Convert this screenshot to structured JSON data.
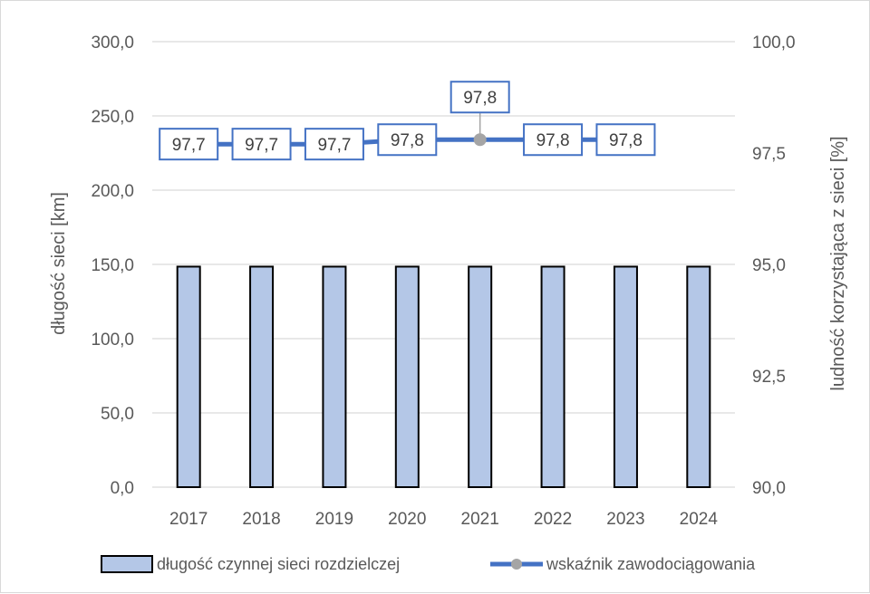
{
  "chart_data": {
    "type": "bar",
    "categories": [
      "2017",
      "2018",
      "2019",
      "2020",
      "2021",
      "2022",
      "2023",
      "2024"
    ],
    "series": [
      {
        "name": "długość czynnej sieci rozdzielczej",
        "type": "bar",
        "axis": "left",
        "values": [
          148.5,
          148.5,
          148.5,
          148.5,
          148.5,
          148.5,
          148.5,
          148.5
        ],
        "color": "#b4c7e7",
        "stroke": "#000000"
      },
      {
        "name": "wskaźnik zawodociągowania",
        "type": "line",
        "axis": "right",
        "values": [
          97.7,
          97.7,
          97.7,
          97.8,
          97.8,
          97.8,
          97.8,
          null
        ],
        "labels": [
          "97,7",
          "97,7",
          "97,7",
          "97,8",
          "97,8",
          "97,8",
          "97,8",
          ""
        ],
        "color": "#4472c4",
        "marker_color": "#a5a5a5"
      }
    ],
    "ylabel": "długość sieci [km]",
    "ylabel_right": "ludność korzystająca z sieci [%]",
    "ylim": [
      0,
      300
    ],
    "ylim_right": [
      90,
      100
    ],
    "yticks": [
      "0,0",
      "50,0",
      "100,0",
      "150,0",
      "200,0",
      "250,0",
      "300,0"
    ],
    "yticks_right": [
      "90,0",
      "92,5",
      "95,0",
      "97,5",
      "100,0"
    ],
    "grid": true,
    "legend_position": "bottom"
  }
}
